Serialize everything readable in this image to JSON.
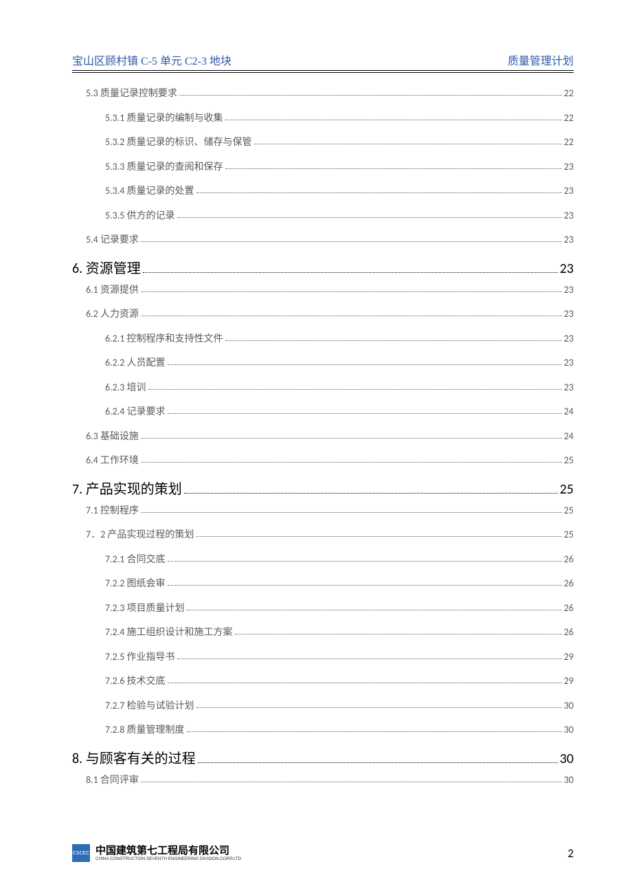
{
  "header": {
    "left": "宝山区顾村镇 C-5 单元 C2-3 地块",
    "right": "质量管理计划"
  },
  "toc": [
    {
      "level": 2,
      "num": "5.3",
      "title": "质量记录控制要求",
      "page": "22"
    },
    {
      "level": 3,
      "num": "5.3.1",
      "title": "质量记录的编制与收集",
      "page": "22"
    },
    {
      "level": 3,
      "num": "5.3.2",
      "title": "质量记录的标识、储存与保管",
      "page": "22"
    },
    {
      "level": 3,
      "num": "5.3.3",
      "title": "质量记录的查阅和保存",
      "page": "23"
    },
    {
      "level": 3,
      "num": "5.3.4",
      "title": "质量记录的处置",
      "page": "23"
    },
    {
      "level": 3,
      "num": "5.3.5",
      "title": "供方的记录",
      "page": "23"
    },
    {
      "level": 2,
      "num": "5.4",
      "title": "记录要求",
      "page": "23"
    },
    {
      "level": 1,
      "num": "6.",
      "title": "资源管理",
      "page": "23"
    },
    {
      "level": 2,
      "num": "6.1",
      "title": "资源提供",
      "page": "23"
    },
    {
      "level": 2,
      "num": "6.2",
      "title": "人力资源",
      "page": "23"
    },
    {
      "level": 3,
      "num": "6.2.1",
      "title": "控制程序和支持性文件",
      "page": "23"
    },
    {
      "level": 3,
      "num": "6.2.2",
      "title": "人员配置",
      "page": "23"
    },
    {
      "level": 3,
      "num": "6.2.3",
      "title": "培训",
      "page": "23"
    },
    {
      "level": 3,
      "num": "6.2.4",
      "title": "记录要求",
      "page": "24"
    },
    {
      "level": 2,
      "num": "6.3",
      "title": "基础设施",
      "page": "24"
    },
    {
      "level": 2,
      "num": "6.4",
      "title": "工作环境",
      "page": "25"
    },
    {
      "level": 1,
      "num": "7.",
      "title": "产品实现的策划",
      "page": "25"
    },
    {
      "level": 2,
      "num": "7.1",
      "title": "控制程序",
      "page": "25"
    },
    {
      "level": 2,
      "num": "7．2",
      "title": "产品实现过程的策划",
      "page": "25"
    },
    {
      "level": 3,
      "num": "7.2.1",
      "title": "合同交底",
      "page": "26"
    },
    {
      "level": 3,
      "num": "7.2.2",
      "title": "图纸会审",
      "page": "26"
    },
    {
      "level": 3,
      "num": "7.2.3",
      "title": "项目质量计划",
      "page": "26"
    },
    {
      "level": 3,
      "num": "7.2.4",
      "title": "施工组织设计和施工方案",
      "page": "26"
    },
    {
      "level": 3,
      "num": "7.2.5",
      "title": "作业指导书",
      "page": "29"
    },
    {
      "level": 3,
      "num": "7.2.6",
      "title": "技术交底",
      "page": "29"
    },
    {
      "level": 3,
      "num": "7.2.7",
      "title": "检验与试验计划",
      "page": "30"
    },
    {
      "level": 3,
      "num": "7.2.8",
      "title": "质量管理制度",
      "page": "30"
    },
    {
      "level": 1,
      "num": "8.",
      "title": "与顾客有关的过程",
      "page": "30"
    },
    {
      "level": 2,
      "num": "8.1",
      "title": "合同评审",
      "page": "30"
    }
  ],
  "footer": {
    "logo_text": "CSCEC",
    "company_cn": "中国建筑第七工程局有限公司",
    "company_en": "CHINA CONSTRUCTION SEVENTH ENGINEERING DIVISION.CORP.LTD",
    "page_number": "2"
  },
  "colors": {
    "header_text": "#2e5aa8",
    "body_text": "#000000",
    "sub_text": "#595959",
    "logo_bg": "#2e6db4"
  }
}
